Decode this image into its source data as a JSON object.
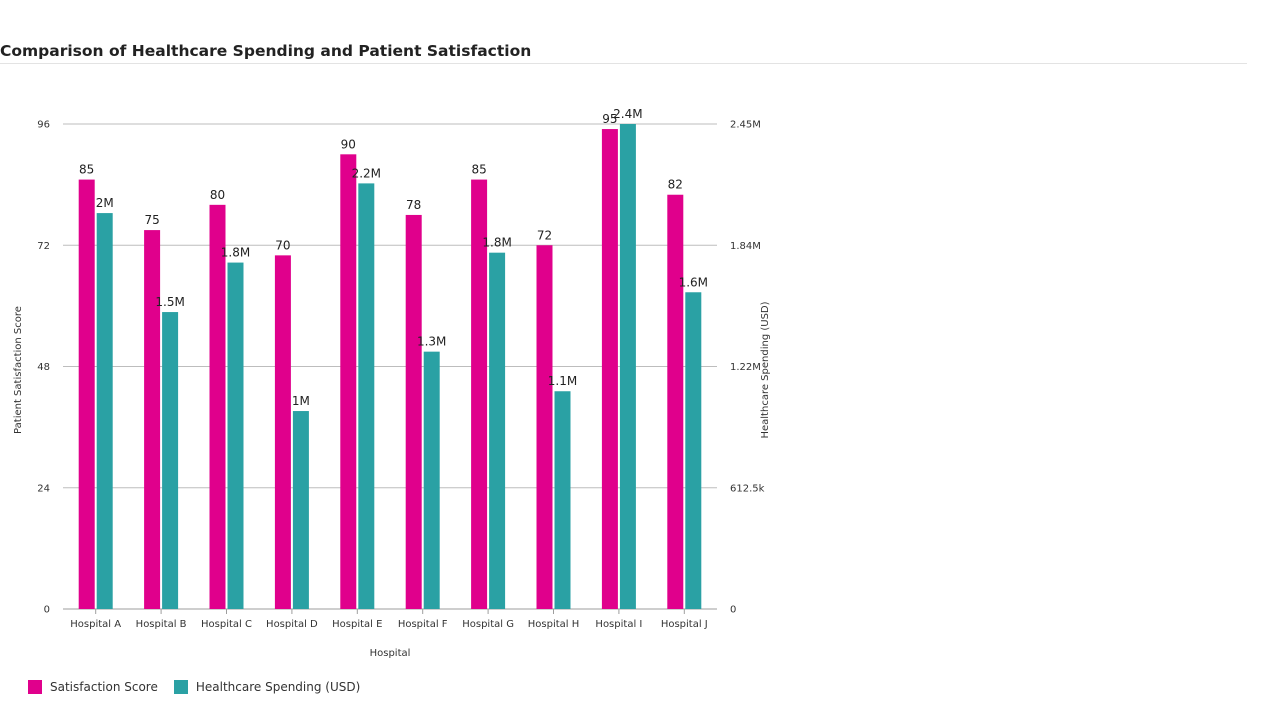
{
  "page": {
    "title": "Comparison of Healthcare Spending and Patient Satisfaction"
  },
  "chart_data": {
    "type": "bar",
    "title": "Comparison of Healthcare Spending and Patient Satisfaction",
    "xlabel": "Hospital",
    "categories": [
      "Hospital A",
      "Hospital B",
      "Hospital C",
      "Hospital D",
      "Hospital E",
      "Hospital F",
      "Hospital G",
      "Hospital H",
      "Hospital I",
      "Hospital J"
    ],
    "series": [
      {
        "name": "Satisfaction Score",
        "axis": "left",
        "color": "#e0008c",
        "values": [
          85,
          75,
          80,
          70,
          90,
          78,
          85,
          72,
          95,
          82
        ],
        "labels": [
          "85",
          "75",
          "80",
          "70",
          "90",
          "78",
          "85",
          "72",
          "95",
          "82"
        ]
      },
      {
        "name": "Healthcare Spending (USD)",
        "axis": "right",
        "color": "#2aa1a4",
        "values": [
          2000000,
          1500000,
          1750000,
          1000000,
          2150000,
          1300000,
          1800000,
          1100000,
          2450000,
          1600000
        ],
        "labels": [
          "2M",
          "1.5M",
          "1.8M",
          "1M",
          "2.2M",
          "1.3M",
          "1.8M",
          "1.1M",
          "2.4M",
          "1.6M"
        ]
      }
    ],
    "y_left": {
      "label": "Patient Satisfaction Score",
      "min": 0,
      "max": 96,
      "ticks": [
        0,
        24,
        48,
        72,
        96
      ],
      "tick_labels": [
        "0",
        "24",
        "48",
        "72",
        "96"
      ]
    },
    "y_right": {
      "label": "Healthcare Spending (USD)",
      "min": 0,
      "max": 2450000,
      "ticks": [
        0,
        612500,
        1225000,
        1837500,
        2450000
      ],
      "tick_labels": [
        "0",
        "612.5k",
        "1.22M",
        "1.84M",
        "2.45M"
      ]
    },
    "grid": true,
    "legend_position": "bottom-left"
  }
}
